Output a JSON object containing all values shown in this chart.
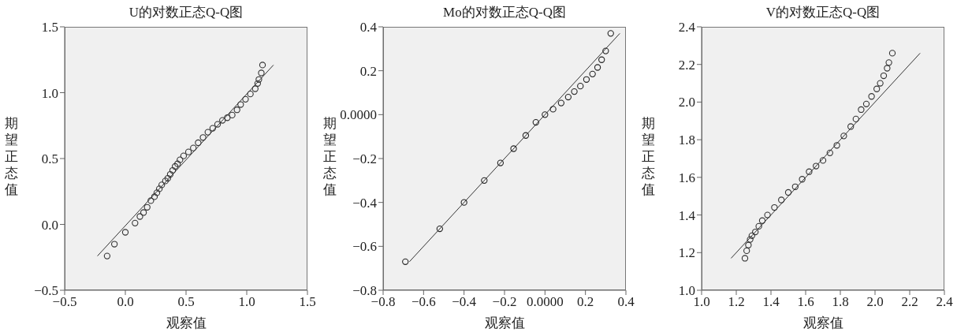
{
  "chart_data": [
    {
      "type": "scatter",
      "title": "U的对数正态Q-Q图",
      "xlabel": "观察值",
      "ylabel": "期望正态值",
      "xlim": [
        -0.5,
        1.5
      ],
      "ylim": [
        -0.5,
        1.5
      ],
      "xticks": [
        {
          "value": -0.5,
          "label": "−0.5"
        },
        {
          "value": 0,
          "label": "0.0"
        },
        0.5,
        {
          "value": 1,
          "label": "1.0"
        },
        1.5
      ],
      "yticks": [
        {
          "value": -0.5,
          "label": "−0.5"
        },
        {
          "value": 0,
          "label": "0.0"
        },
        0.5,
        {
          "value": 1,
          "label": "1.0"
        },
        1.5
      ],
      "series": [
        {
          "type": "scatter",
          "marker": "circle",
          "color": "#333333",
          "x": [
            -0.15,
            -0.09,
            0.0,
            0.08,
            0.12,
            0.15,
            0.18,
            0.21,
            0.24,
            0.26,
            0.28,
            0.3,
            0.33,
            0.35,
            0.37,
            0.39,
            0.41,
            0.43,
            0.45,
            0.48,
            0.52,
            0.56,
            0.6,
            0.64,
            0.68,
            0.72,
            0.76,
            0.8,
            0.84,
            0.88,
            0.92,
            0.95,
            0.99,
            1.03,
            1.07,
            1.09,
            1.1,
            1.12,
            1.13
          ],
          "values": [
            -0.24,
            -0.15,
            -0.06,
            0.01,
            0.06,
            0.09,
            0.13,
            0.18,
            0.21,
            0.24,
            0.27,
            0.3,
            0.33,
            0.35,
            0.38,
            0.41,
            0.44,
            0.46,
            0.49,
            0.52,
            0.55,
            0.58,
            0.62,
            0.66,
            0.7,
            0.73,
            0.76,
            0.79,
            0.81,
            0.83,
            0.87,
            0.91,
            0.95,
            0.99,
            1.03,
            1.07,
            1.1,
            1.15,
            1.21
          ]
        },
        {
          "type": "line",
          "marker": "none",
          "color": "#333333",
          "line_style": "solid",
          "x": [
            -0.23,
            1.22
          ],
          "values": [
            -0.24,
            1.21
          ]
        }
      ]
    },
    {
      "type": "scatter",
      "title": "Mo的对数正态Q-Q图",
      "xlabel": "观察值",
      "ylabel": "期望正态值",
      "xlim": [
        -0.8,
        0.4
      ],
      "ylim": [
        -0.8,
        0.4
      ],
      "xticks": [
        {
          "value": -0.8,
          "label": "−0.8"
        },
        {
          "value": -0.6,
          "label": "−0.6"
        },
        {
          "value": -0.4,
          "label": "−0.4"
        },
        {
          "value": -0.2,
          "label": "−0.2"
        },
        {
          "value": 0,
          "label": "0.0000"
        },
        0.2,
        0.4
      ],
      "yticks": [
        {
          "value": -0.8,
          "label": "−0.8"
        },
        {
          "value": -0.6,
          "label": "−0.6"
        },
        {
          "value": -0.4,
          "label": "−0.4"
        },
        {
          "value": -0.2,
          "label": "−0.2"
        },
        {
          "value": 0,
          "label": "0.0000"
        },
        0.2,
        0.4
      ],
      "series": [
        {
          "type": "scatter",
          "marker": "circle",
          "color": "#222222",
          "x": [
            -0.69,
            -0.52,
            -0.4,
            -0.3,
            -0.22,
            -0.155,
            -0.095,
            -0.045,
            0.0,
            0.04,
            0.08,
            0.115,
            0.145,
            0.175,
            0.205,
            0.235,
            0.26,
            0.28,
            0.3,
            0.325
          ],
          "values": [
            -0.67,
            -0.52,
            -0.4,
            -0.3,
            -0.22,
            -0.155,
            -0.095,
            -0.035,
            0.0,
            0.025,
            0.053,
            0.08,
            0.105,
            0.13,
            0.16,
            0.185,
            0.215,
            0.25,
            0.29,
            0.37
          ]
        },
        {
          "type": "line",
          "marker": "none",
          "color": "#333333",
          "line_style": "solid",
          "x": [
            -0.67,
            0.37
          ],
          "values": [
            -0.67,
            0.37
          ]
        }
      ]
    },
    {
      "type": "scatter",
      "title": "V的对数正态Q-Q图",
      "xlabel": "观察值",
      "ylabel": "期望正态值",
      "xlim": [
        1.0,
        2.4
      ],
      "ylim": [
        1.0,
        2.4
      ],
      "xticks": [
        {
          "value": 1,
          "label": "1.0"
        },
        1.2,
        1.4,
        1.6,
        1.8,
        {
          "value": 2,
          "label": "2.0"
        },
        2.2,
        2.4
      ],
      "yticks": [
        {
          "value": 1,
          "label": "1.0"
        },
        1.2,
        1.4,
        1.6,
        1.8,
        {
          "value": 2,
          "label": "2.0"
        },
        2.2,
        2.4
      ],
      "series": [
        {
          "type": "scatter",
          "marker": "circle",
          "color": "#333333",
          "x": [
            1.25,
            1.26,
            1.27,
            1.28,
            1.29,
            1.31,
            1.33,
            1.35,
            1.38,
            1.42,
            1.46,
            1.5,
            1.54,
            1.58,
            1.62,
            1.66,
            1.7,
            1.74,
            1.78,
            1.82,
            1.86,
            1.89,
            1.92,
            1.95,
            1.98,
            2.01,
            2.03,
            2.05,
            2.07,
            2.08,
            2.1
          ],
          "values": [
            1.17,
            1.21,
            1.24,
            1.27,
            1.29,
            1.31,
            1.34,
            1.37,
            1.4,
            1.44,
            1.48,
            1.52,
            1.55,
            1.59,
            1.63,
            1.66,
            1.69,
            1.73,
            1.77,
            1.82,
            1.87,
            1.91,
            1.96,
            1.99,
            2.03,
            2.07,
            2.1,
            2.14,
            2.18,
            2.21,
            2.26
          ]
        },
        {
          "type": "line",
          "marker": "none",
          "color": "#333333",
          "line_style": "solid",
          "x": [
            1.17,
            2.26
          ],
          "values": [
            1.17,
            2.26
          ]
        }
      ]
    }
  ]
}
